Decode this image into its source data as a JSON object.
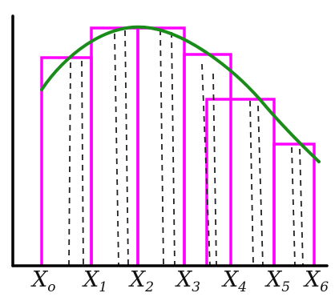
{
  "diagram": {
    "partition_points": [
      {
        "letter": "X",
        "sub": "o"
      },
      {
        "letter": "X",
        "sub": "1"
      },
      {
        "letter": "X",
        "sub": "2"
      },
      {
        "letter": "X",
        "sub": "3"
      },
      {
        "letter": "X",
        "sub": "4"
      },
      {
        "letter": "X",
        "sub": "5"
      },
      {
        "letter": "X",
        "sub": "6"
      }
    ],
    "colors": {
      "rectangles": "#ff00ff",
      "curve": "#1a8c1a",
      "dashed_lines": "#222222",
      "axes": "#000000"
    }
  }
}
